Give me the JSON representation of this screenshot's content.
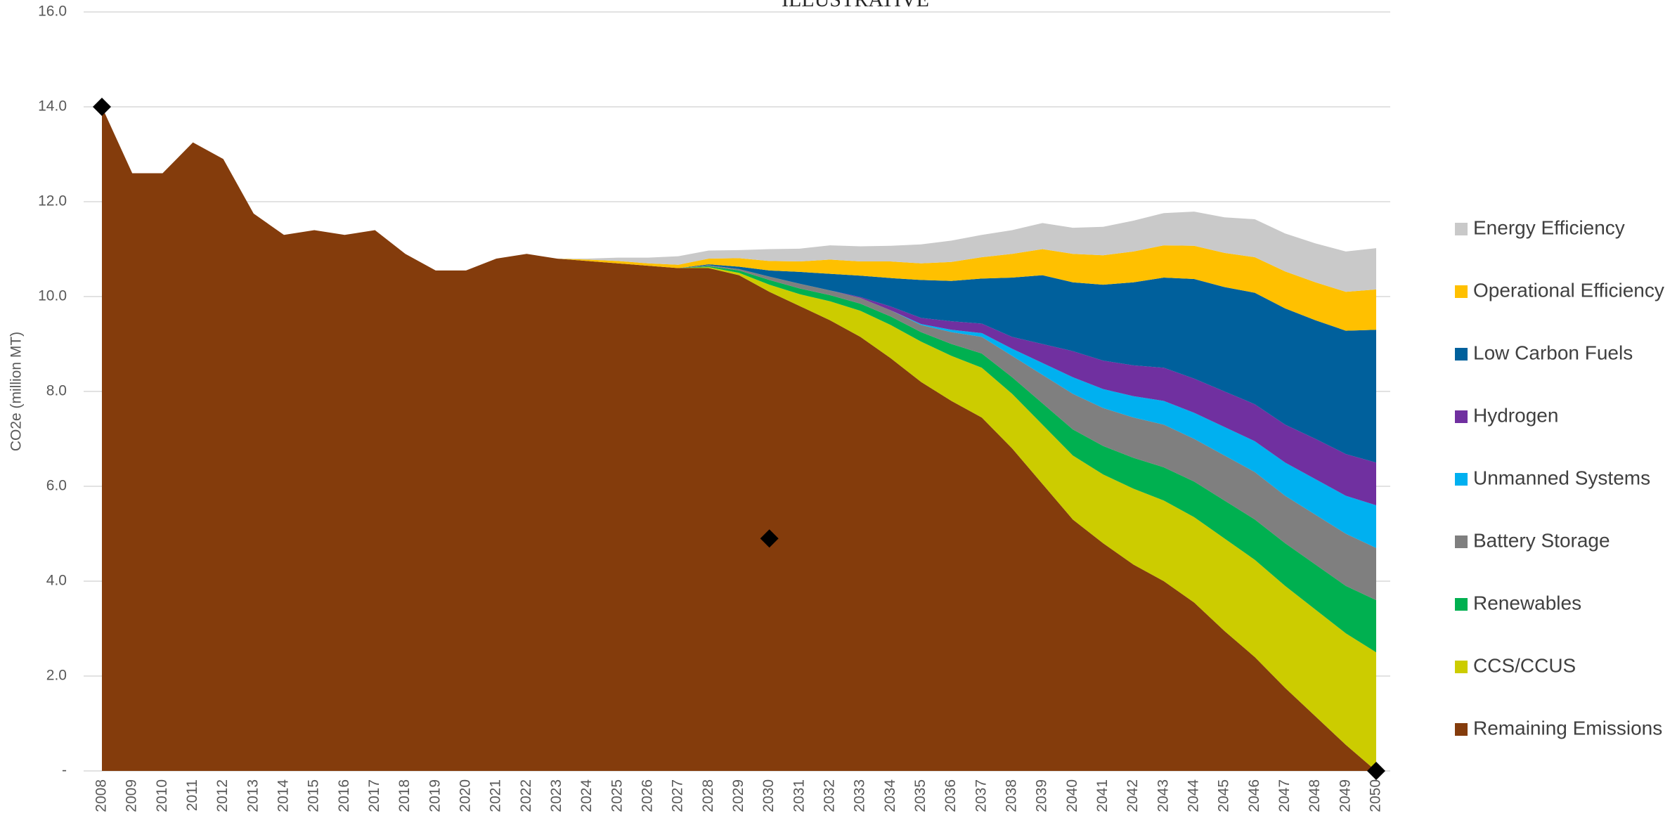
{
  "chart_data": {
    "type": "stacked_area",
    "title": "ILLUSTRATIVE",
    "y_label": "CO2e (million MT)",
    "categories": [
      "2008",
      "2009",
      "2010",
      "2011",
      "2012",
      "2013",
      "2014",
      "2015",
      "2016",
      "2017",
      "2018",
      "2019",
      "2020",
      "2021",
      "2022",
      "2023",
      "2024",
      "2025",
      "2026",
      "2027",
      "2028",
      "2029",
      "2030",
      "2031",
      "2032",
      "2033",
      "2034",
      "2035",
      "2036",
      "2037",
      "2038",
      "2039",
      "2040",
      "2041",
      "2042",
      "2043",
      "2044",
      "2045",
      "2046",
      "2047",
      "2048",
      "2049",
      "2050"
    ],
    "series": [
      {
        "name": "Remaining Emissions",
        "color": "#843c0c",
        "values": [
          14.0,
          12.6,
          12.6,
          13.25,
          12.9,
          11.75,
          11.3,
          11.4,
          11.3,
          11.4,
          10.9,
          10.55,
          10.55,
          10.8,
          10.9,
          10.8,
          10.75,
          10.7,
          10.65,
          10.6,
          10.6,
          10.45,
          10.1,
          9.8,
          9.5,
          9.15,
          8.7,
          8.2,
          7.8,
          7.45,
          6.8,
          6.05,
          5.3,
          4.8,
          4.35,
          4.0,
          3.55,
          2.95,
          2.4,
          1.75,
          1.15,
          0.55,
          0
        ]
      },
      {
        "name": "CCS/CCUS",
        "color": "#cccc00",
        "values": [
          0,
          0,
          0,
          0,
          0,
          0,
          0,
          0,
          0,
          0,
          0,
          0,
          0,
          0,
          0,
          0,
          0,
          0,
          0,
          0,
          0.02,
          0.05,
          0.15,
          0.25,
          0.4,
          0.55,
          0.7,
          0.85,
          0.95,
          1.05,
          1.15,
          1.25,
          1.35,
          1.45,
          1.6,
          1.7,
          1.8,
          1.95,
          2.05,
          2.15,
          2.25,
          2.35,
          2.5
        ]
      },
      {
        "name": "Renewables",
        "color": "#00b050",
        "values": [
          0,
          0,
          0,
          0,
          0,
          0,
          0,
          0,
          0,
          0,
          0,
          0,
          0,
          0,
          0,
          0,
          0,
          0,
          0,
          0,
          0.02,
          0.05,
          0.1,
          0.12,
          0.13,
          0.15,
          0.18,
          0.2,
          0.25,
          0.3,
          0.35,
          0.45,
          0.55,
          0.6,
          0.65,
          0.7,
          0.75,
          0.8,
          0.85,
          0.9,
          0.95,
          1.0,
          1.1
        ]
      },
      {
        "name": "Battery Storage",
        "color": "#7f7f7f",
        "values": [
          0,
          0,
          0,
          0,
          0,
          0,
          0,
          0,
          0,
          0,
          0,
          0,
          0,
          0,
          0,
          0,
          0,
          0,
          0,
          0,
          0.02,
          0.03,
          0.07,
          0.1,
          0.1,
          0.12,
          0.13,
          0.15,
          0.25,
          0.35,
          0.45,
          0.6,
          0.75,
          0.8,
          0.85,
          0.9,
          0.9,
          0.95,
          1.0,
          1.0,
          1.05,
          1.1,
          1.1
        ]
      },
      {
        "name": "Unmanned Systems",
        "color": "#00b0f0",
        "values": [
          0,
          0,
          0,
          0,
          0,
          0,
          0,
          0,
          0,
          0,
          0,
          0,
          0,
          0,
          0,
          0,
          0,
          0,
          0,
          0,
          0,
          0,
          0,
          0,
          0,
          0,
          0,
          0.02,
          0.05,
          0.08,
          0.15,
          0.25,
          0.35,
          0.4,
          0.45,
          0.5,
          0.55,
          0.6,
          0.65,
          0.7,
          0.75,
          0.8,
          0.9
        ]
      },
      {
        "name": "Hydrogen",
        "color": "#7030a0",
        "values": [
          0,
          0,
          0,
          0,
          0,
          0,
          0,
          0,
          0,
          0,
          0,
          0,
          0,
          0,
          0,
          0,
          0,
          0,
          0,
          0,
          0,
          0,
          0,
          0,
          0,
          0.02,
          0.08,
          0.13,
          0.18,
          0.2,
          0.25,
          0.4,
          0.55,
          0.6,
          0.65,
          0.7,
          0.72,
          0.75,
          0.78,
          0.8,
          0.85,
          0.88,
          0.9
        ]
      },
      {
        "name": "Low Carbon Fuels",
        "color": "#00609c",
        "values": [
          0,
          0,
          0,
          0,
          0,
          0,
          0,
          0,
          0,
          0,
          0,
          0,
          0,
          0,
          0,
          0,
          0,
          0,
          0,
          0,
          0.02,
          0.05,
          0.13,
          0.25,
          0.35,
          0.45,
          0.6,
          0.8,
          0.85,
          0.95,
          1.25,
          1.45,
          1.45,
          1.6,
          1.75,
          1.9,
          2.1,
          2.2,
          2.35,
          2.45,
          2.5,
          2.6,
          2.8
        ]
      },
      {
        "name": "Operational Efficiency",
        "color": "#ffc000",
        "values": [
          0,
          0,
          0,
          0,
          0,
          0,
          0,
          0,
          0,
          0,
          0,
          0,
          0,
          0,
          0,
          0,
          0.03,
          0.05,
          0.05,
          0.07,
          0.12,
          0.18,
          0.2,
          0.22,
          0.3,
          0.3,
          0.35,
          0.35,
          0.4,
          0.45,
          0.5,
          0.55,
          0.6,
          0.62,
          0.65,
          0.68,
          0.7,
          0.72,
          0.75,
          0.78,
          0.8,
          0.82,
          0.85
        ]
      },
      {
        "name": "Energy Efficiency",
        "color": "#c9c9c9",
        "values": [
          0,
          0,
          0,
          0,
          0,
          0,
          0,
          0,
          0,
          0,
          0,
          0,
          0,
          0,
          0,
          0,
          0.02,
          0.07,
          0.12,
          0.18,
          0.17,
          0.17,
          0.25,
          0.27,
          0.3,
          0.32,
          0.33,
          0.4,
          0.45,
          0.47,
          0.5,
          0.55,
          0.55,
          0.6,
          0.65,
          0.68,
          0.72,
          0.75,
          0.8,
          0.8,
          0.82,
          0.85,
          0.87
        ]
      }
    ],
    "markers": {
      "categories": [
        "2008",
        "2030",
        "2050"
      ],
      "values": [
        14.0,
        4.9,
        0
      ],
      "color": "#000000"
    },
    "ylim": [
      0,
      16
    ],
    "yticks": [
      {
        "value": 0,
        "label": "-"
      },
      {
        "value": 2,
        "label": "2.0"
      },
      {
        "value": 4,
        "label": "4.0"
      },
      {
        "value": 6,
        "label": "6.0"
      },
      {
        "value": 8,
        "label": "8.0"
      },
      {
        "value": 10,
        "label": "10.0"
      },
      {
        "value": 12,
        "label": "12.0"
      },
      {
        "value": 14,
        "label": "14.0"
      },
      {
        "value": 16,
        "label": "16.0"
      }
    ],
    "grid": true,
    "legend": "right"
  }
}
